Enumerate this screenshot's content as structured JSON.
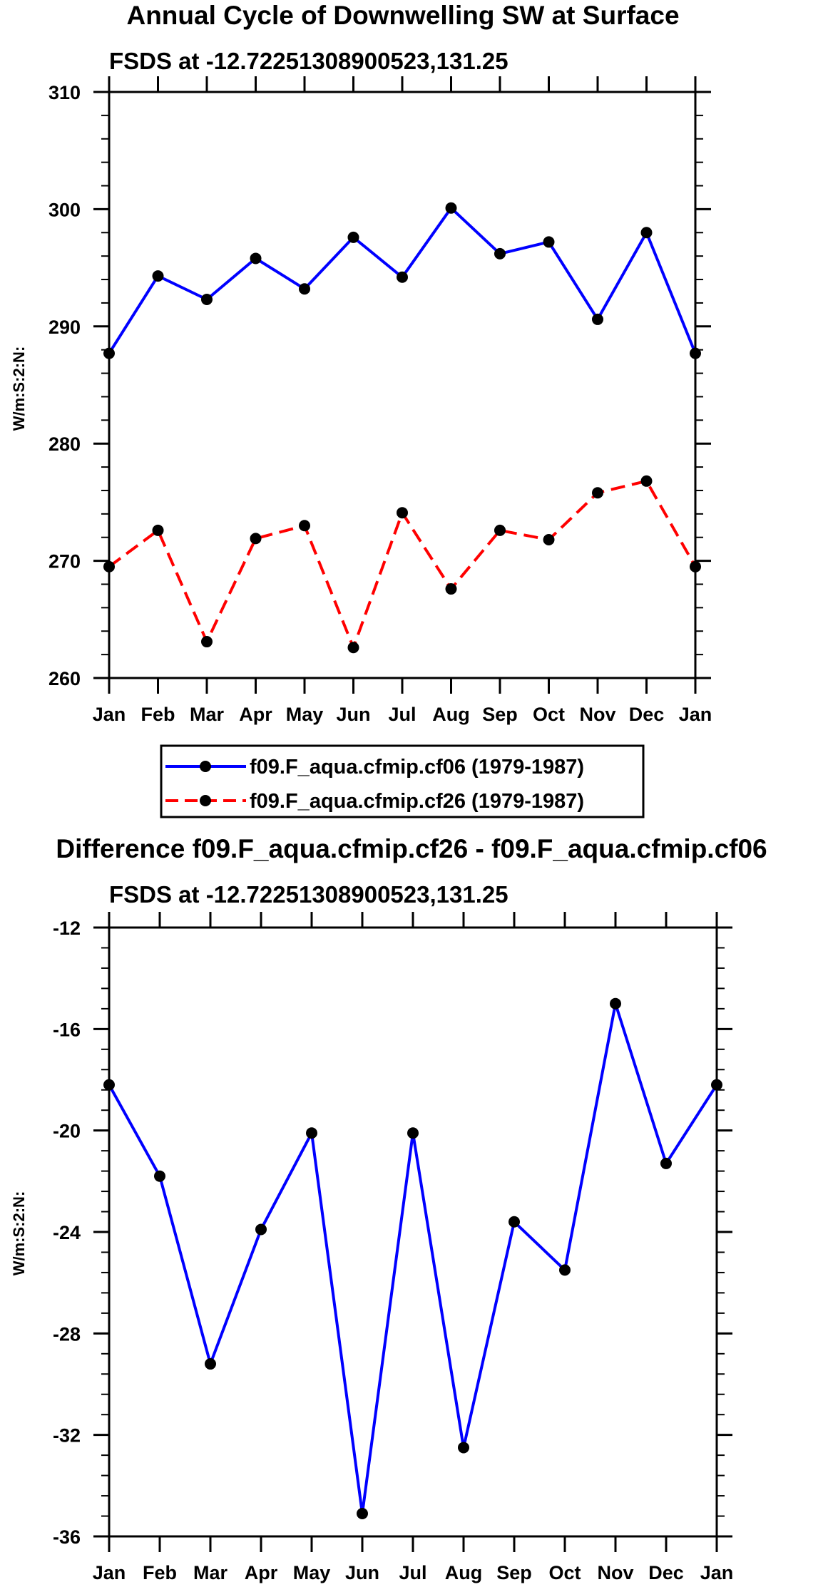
{
  "chart_data": [
    {
      "type": "line",
      "title": "Annual Cycle of Downwelling SW at Surface",
      "subtitle": "FSDS at -12.72251308900523,131.25",
      "xlabel": "",
      "ylabel": "W/m:S:2:N:",
      "categories": [
        "Jan",
        "Feb",
        "Mar",
        "Apr",
        "May",
        "Jun",
        "Jul",
        "Aug",
        "Sep",
        "Oct",
        "Nov",
        "Dec",
        "Jan"
      ],
      "ylim": [
        260,
        310
      ],
      "yticks": [
        260,
        270,
        280,
        290,
        300,
        310
      ],
      "series": [
        {
          "name": "f09.F_aqua.cfmip.cf06 (1979-1987)",
          "color": "#0000ff",
          "dash": "solid",
          "values": [
            287.7,
            294.3,
            292.3,
            295.8,
            293.2,
            297.6,
            294.2,
            300.1,
            296.2,
            297.2,
            290.6,
            298.0,
            287.7
          ]
        },
        {
          "name": "f09.F_aqua.cfmip.cf26 (1979-1987)",
          "color": "#ff0000",
          "dash": "dashed",
          "values": [
            269.5,
            272.6,
            263.1,
            271.9,
            273.0,
            262.6,
            274.1,
            267.6,
            272.6,
            271.8,
            275.8,
            276.8,
            269.5
          ]
        }
      ],
      "legend": "below"
    },
    {
      "type": "line",
      "title": "Difference f09.F_aqua.cfmip.cf26 - f09.F_aqua.cfmip.cf06",
      "subtitle": "FSDS at -12.72251308900523,131.25",
      "xlabel": "",
      "ylabel": "W/m:S:2:N:",
      "categories": [
        "Jan",
        "Feb",
        "Mar",
        "Apr",
        "May",
        "Jun",
        "Jul",
        "Aug",
        "Sep",
        "Oct",
        "Nov",
        "Dec",
        "Jan"
      ],
      "ylim": [
        -36,
        -12
      ],
      "yticks": [
        -36,
        -32,
        -28,
        -24,
        -20,
        -16,
        -12
      ],
      "series": [
        {
          "color": "#0000ff",
          "dash": "solid",
          "values": [
            -18.2,
            -21.8,
            -29.2,
            -23.9,
            -20.1,
            -35.1,
            -20.1,
            -32.5,
            -23.6,
            -25.5,
            -15.0,
            -21.3,
            -18.2
          ]
        }
      ]
    }
  ]
}
